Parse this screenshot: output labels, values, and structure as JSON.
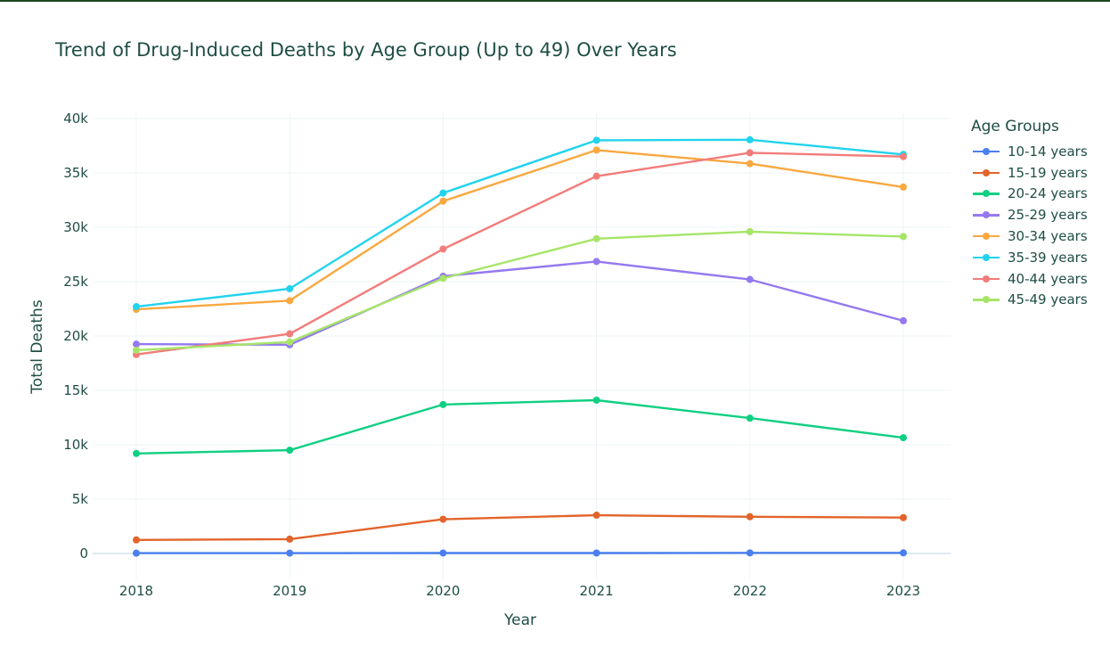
{
  "title": "Trend of Drug-Induced Deaths by Age Group (Up to 49) Over Years",
  "legend": {
    "title": "Age Groups",
    "items": [
      {
        "label": "10-14 years",
        "color": "#4a7fef"
      },
      {
        "label": "15-19 years",
        "color": "#e2642a"
      },
      {
        "label": "20-24 years",
        "color": "#0fcf82"
      },
      {
        "label": "25-29 years",
        "color": "#9479ef"
      },
      {
        "label": "30-34 years",
        "color": "#f9a840"
      },
      {
        "label": "35-39 years",
        "color": "#21d3ee"
      },
      {
        "label": "40-44 years",
        "color": "#f27c7a"
      },
      {
        "label": "45-49 years",
        "color": "#a6e568"
      }
    ]
  },
  "chart_data": {
    "type": "line",
    "title": "Trend of Drug-Induced Deaths by Age Group (Up to 49) Over Years",
    "xlabel": "Year",
    "ylabel": "Total Deaths",
    "x": [
      2018,
      2019,
      2020,
      2021,
      2022,
      2023
    ],
    "x_ticks": [
      "2018",
      "2019",
      "2020",
      "2021",
      "2022",
      "2023"
    ],
    "ylim": [
      -2600,
      40600
    ],
    "y_ticks": [
      0,
      5000,
      10000,
      15000,
      20000,
      25000,
      30000,
      35000,
      40000
    ],
    "y_tick_labels": [
      "0",
      "5k",
      "10k",
      "15k",
      "20k",
      "25k",
      "30k",
      "35k",
      "40k"
    ],
    "grid": true,
    "legend_position": "right",
    "series": [
      {
        "name": "10-14 years",
        "color": "#4a7fef",
        "values": [
          30,
          35,
          45,
          45,
          55,
          60
        ]
      },
      {
        "name": "15-19 years",
        "color": "#e2642a",
        "values": [
          1250,
          1320,
          3150,
          3520,
          3380,
          3300
        ]
      },
      {
        "name": "20-24 years",
        "color": "#0fcf82",
        "values": [
          9200,
          9500,
          13700,
          14100,
          12450,
          10650
        ]
      },
      {
        "name": "25-29 years",
        "color": "#9479ef",
        "values": [
          19250,
          19200,
          25500,
          26850,
          25200,
          21400
        ]
      },
      {
        "name": "30-34 years",
        "color": "#f9a840",
        "values": [
          22450,
          23250,
          32400,
          37100,
          35850,
          33700
        ]
      },
      {
        "name": "35-39 years",
        "color": "#21d3ee",
        "values": [
          22700,
          24350,
          33150,
          38000,
          38050,
          36700
        ]
      },
      {
        "name": "40-44 years",
        "color": "#f27c7a",
        "values": [
          18300,
          20200,
          28000,
          34700,
          36850,
          36500
        ]
      },
      {
        "name": "45-49 years",
        "color": "#a6e568",
        "values": [
          18700,
          19450,
          25300,
          28950,
          29600,
          29150
        ]
      }
    ]
  }
}
